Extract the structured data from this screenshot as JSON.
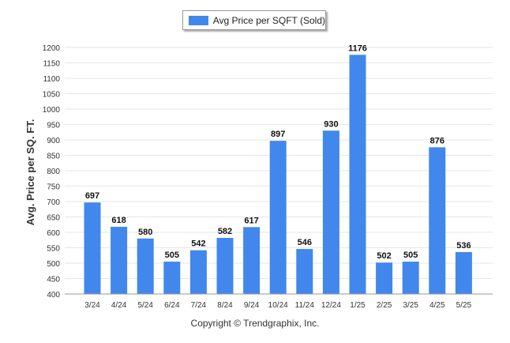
{
  "chart_data": {
    "type": "bar",
    "categories": [
      "3/24",
      "4/24",
      "5/24",
      "6/24",
      "7/24",
      "8/24",
      "9/24",
      "10/24",
      "11/24",
      "12/24",
      "1/25",
      "2/25",
      "3/25",
      "4/25",
      "5/25"
    ],
    "series": [
      {
        "name": "Avg Price per SQFT (Sold)",
        "values": [
          697,
          618,
          580,
          505,
          542,
          582,
          617,
          897,
          546,
          930,
          1176,
          502,
          505,
          876,
          536
        ]
      }
    ],
    "ylabel": "Avg. Price per SQ. FT.",
    "xlabel": "",
    "ylim": [
      400,
      1200
    ],
    "yticks": [
      400,
      450,
      500,
      550,
      600,
      650,
      700,
      750,
      800,
      850,
      900,
      950,
      1000,
      1050,
      1100,
      1150,
      1200
    ],
    "grid": true,
    "legend": "top-center",
    "data_labels": true
  },
  "colors": {
    "bar": "#4287ec",
    "grid": "#e6e6e6",
    "axis": "#999999"
  },
  "footer": {
    "copyright": "Copyright © Trendgraphix, Inc."
  }
}
